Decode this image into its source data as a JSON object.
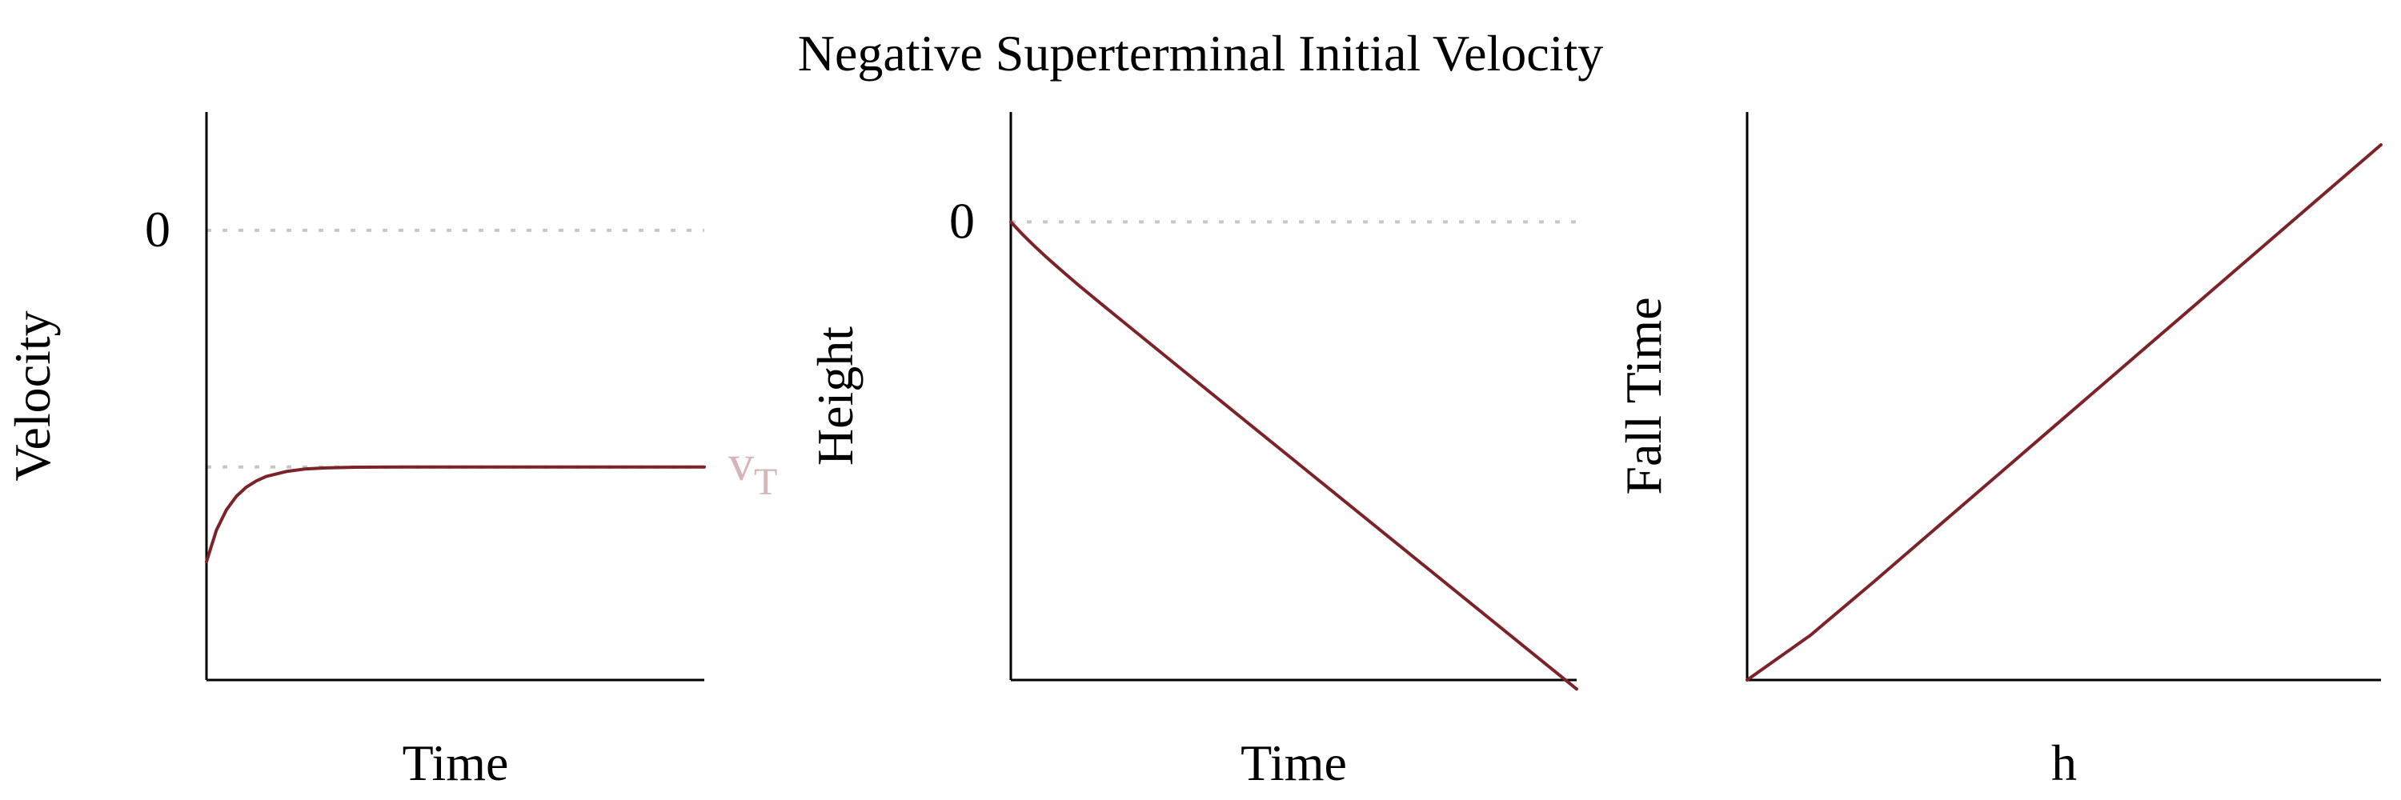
{
  "title": "Negative Superterminal Initial Velocity",
  "colors": {
    "curve": "#7b2328",
    "reference": "#c7c7c7",
    "vt_label": "#d8b4b6",
    "axes": "#000000"
  },
  "chart_data": [
    {
      "type": "line",
      "title": "",
      "xlabel": "Time",
      "ylabel": "Velocity",
      "xlim": [
        0,
        5
      ],
      "ylim": [
        -1.9,
        0.5
      ],
      "grid": false,
      "reference_lines": [
        {
          "y": 0,
          "label": "0",
          "label_side": "left"
        },
        {
          "y": -1,
          "label": "v",
          "subscript": "T",
          "label_side": "right"
        }
      ],
      "series": [
        {
          "x": [
            0,
            0.1,
            0.2,
            0.3,
            0.4,
            0.5,
            0.6,
            0.8,
            1.0,
            1.2,
            1.5,
            2.0,
            2.5,
            3.0,
            4.0,
            5.0
          ],
          "y": [
            -1.4,
            -1.267,
            -1.181,
            -1.124,
            -1.085,
            -1.059,
            -1.04,
            -1.019,
            -1.008,
            -1.004,
            -1.001,
            -1.0,
            -1.0,
            -1.0,
            -1.0,
            -1.0
          ]
        }
      ]
    },
    {
      "type": "line",
      "title": "",
      "xlabel": "Time",
      "ylabel": "Height",
      "xlim": [
        0,
        5
      ],
      "ylim": [
        -5.0,
        1.2
      ],
      "grid": false,
      "reference_lines": [
        {
          "y": 0,
          "label": "0",
          "label_side": "left"
        }
      ],
      "series": [
        {
          "x": [
            0,
            0.1,
            0.2,
            0.3,
            0.4,
            0.5,
            0.6,
            0.8,
            1.0,
            1.5,
            2.0,
            2.5,
            3.0,
            3.5,
            4.0,
            4.5,
            5.0
          ],
          "y": [
            0,
            -0.131,
            -0.253,
            -0.368,
            -0.478,
            -0.586,
            -0.691,
            -0.895,
            -1.097,
            -1.599,
            -2.099,
            -2.599,
            -3.099,
            -3.599,
            -4.099,
            -4.599,
            -5.099
          ]
        }
      ]
    },
    {
      "type": "line",
      "title": "",
      "xlabel": "h",
      "ylabel": "Fall Time",
      "xlim": [
        0,
        5
      ],
      "ylim": [
        0,
        5.2
      ],
      "grid": false,
      "series": [
        {
          "x": [
            0,
            0.5,
            1.0,
            1.5,
            2.0,
            2.5,
            3.0,
            3.5,
            4.0,
            4.5,
            5.0
          ],
          "y": [
            0,
            0.41,
            0.9,
            1.4,
            1.9,
            2.4,
            2.9,
            3.4,
            3.9,
            4.4,
            4.9
          ]
        }
      ]
    }
  ]
}
